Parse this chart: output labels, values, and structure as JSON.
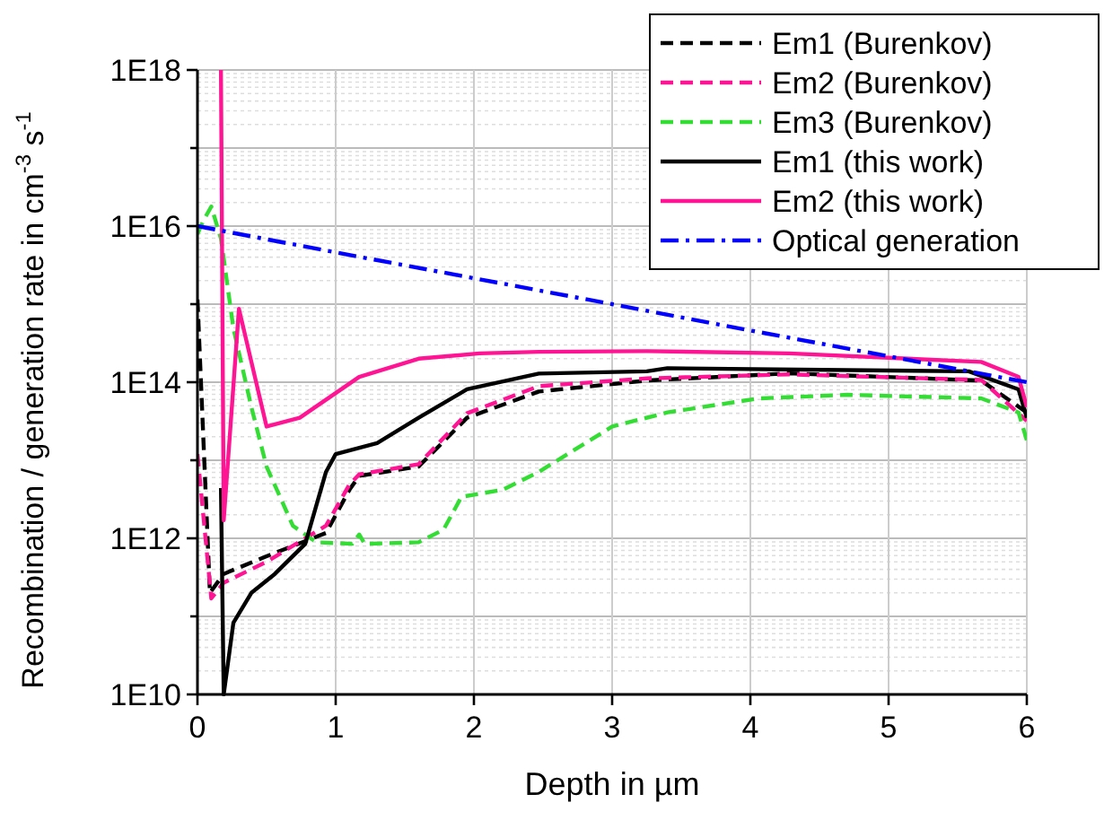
{
  "chart_data": {
    "type": "line",
    "xlabel": "Depth in µm",
    "ylabel": "Recombination / generation rate in cm$^{-3}$ s$^{-1}$",
    "xlim": [
      0,
      6
    ],
    "ylim": [
      10000000000.0,
      1e+18
    ],
    "xticks": [
      0,
      1,
      2,
      3,
      4,
      5,
      6
    ],
    "yticks": [
      {
        "value": 10000000000.0,
        "label": "1E10"
      },
      {
        "value": 100000000000.0,
        "label": null
      },
      {
        "value": 1000000000000.0,
        "label": "1E12"
      },
      {
        "value": 10000000000000.0,
        "label": null
      },
      {
        "value": 100000000000000.0,
        "label": "1E14"
      },
      {
        "value": 1000000000000000.0,
        "label": null
      },
      {
        "value": 1e+16,
        "label": "1E16"
      },
      {
        "value": 1e+17,
        "label": null
      },
      {
        "value": 1e+18,
        "label": "1E18"
      }
    ],
    "log": "y",
    "grid": true,
    "legend": "top right",
    "marker": "none",
    "series": [
      {
        "name": "Em1 (Burenkov)",
        "color": "#000000",
        "line_style": "dashed",
        "x": [
          0,
          0.09,
          0.19,
          0.5,
          0.93,
          1.1,
          1.17,
          1.6,
          1.95,
          2.47,
          3.25,
          4.28,
          5.67,
          6
        ],
        "values": [
          1150000000000000.0,
          200000000000.0,
          350000000000.0,
          590000000000.0,
          1170000000000.0,
          4200000000000.0,
          6300000000000.0,
          8300000000000.0,
          35000000000000.0,
          76000000000000.0,
          105000000000000.0,
          130000000000000.0,
          105000000000000.0,
          41000000000000.0
        ]
      },
      {
        "name": "Em2 (Burenkov)",
        "color": "#ff1493",
        "line_style": "dashed",
        "x": [
          0,
          0.1,
          0.19,
          0.5,
          0.93,
          1.1,
          1.17,
          1.6,
          1.95,
          2.47,
          3.25,
          4.28,
          5.67,
          6
        ],
        "values": [
          12000000000000.0,
          170000000000.0,
          270000000000.0,
          500000000000.0,
          1450000000000.0,
          4900000000000.0,
          6600000000000.0,
          8900000000000.0,
          40000000000000.0,
          89000000000000.0,
          112000000000000.0,
          126000000000000.0,
          107000000000000.0,
          32000000000000.0
        ]
      },
      {
        "name": "Em3 (Burenkov)",
        "color": "#33dd33",
        "line_style": "dashed",
        "x": [
          0,
          0.04,
          0.1,
          0.17,
          0.26,
          0.39,
          0.5,
          0.69,
          0.86,
          1.12,
          1.17,
          1.21,
          1.6,
          1.78,
          1.91,
          2.21,
          2.47,
          3,
          3.4,
          4.06,
          4.7,
          5.67,
          5.94,
          6
        ],
        "values": [
          7900000000000000.0,
          1.15e+16,
          1.78e+16,
          6900000000000000.0,
          490000000000000.0,
          48000000000000.0,
          8300000000000.0,
          1450000000000.0,
          890000000000.0,
          850000000000.0,
          1120000000000.0,
          850000000000.0,
          890000000000.0,
          1290000000000.0,
          3400000000000.0,
          4200000000000.0,
          7100000000000.0,
          27000000000000.0,
          41000000000000.0,
          62000000000000.0,
          69000000000000.0,
          62000000000000.0,
          41000000000000.0,
          18000000000000.0
        ]
      },
      {
        "name": "Em1 (this work)",
        "color": "#000000",
        "line_style": "solid",
        "x": [
          0.17,
          0.19,
          0.26,
          0.39,
          0.56,
          0.78,
          0.93,
          1,
          1.3,
          1.6,
          1.95,
          2.47,
          3.25,
          3.4,
          5.58,
          5.94,
          6
        ],
        "values": [
          4400000000000.0,
          10000000000.0,
          83000000000.0,
          200000000000.0,
          350000000000.0,
          850000000000.0,
          7100000000000.0,
          12000000000000.0,
          16600000000000.0,
          35000000000000.0,
          81000000000000.0,
          129000000000000.0,
          138000000000000.0,
          151000000000000.0,
          138000000000000.0,
          81000000000000.0,
          35000000000000.0
        ]
      },
      {
        "name": "Em2 (this work)",
        "color": "#ff1493",
        "line_style": "solid",
        "x": [
          0.17,
          0.19,
          0.3,
          0.5,
          0.74,
          1.17,
          1.6,
          2.04,
          2.47,
          3.25,
          4.28,
          5.67,
          5.94,
          6
        ],
        "values": [
          1e+18,
          1700000000000.0,
          870000000000000.0,
          27000000000000.0,
          35000000000000.0,
          117000000000000.0,
          200000000000000.0,
          234000000000000.0,
          245000000000000.0,
          250000000000000.0,
          234000000000000.0,
          182000000000000.0,
          117000000000000.0,
          48000000000000.0
        ]
      },
      {
        "name": "Optical generation",
        "color": "#0000ff",
        "line_style": "dashdot",
        "x": [
          0,
          1,
          2,
          3,
          4,
          5,
          6
        ],
        "values": [
          1e+16,
          4600000000000000.0,
          2150000000000000.0,
          1000000000000000.0,
          460000000000000.0,
          215000000000000.0,
          100000000000000.0
        ]
      }
    ]
  }
}
